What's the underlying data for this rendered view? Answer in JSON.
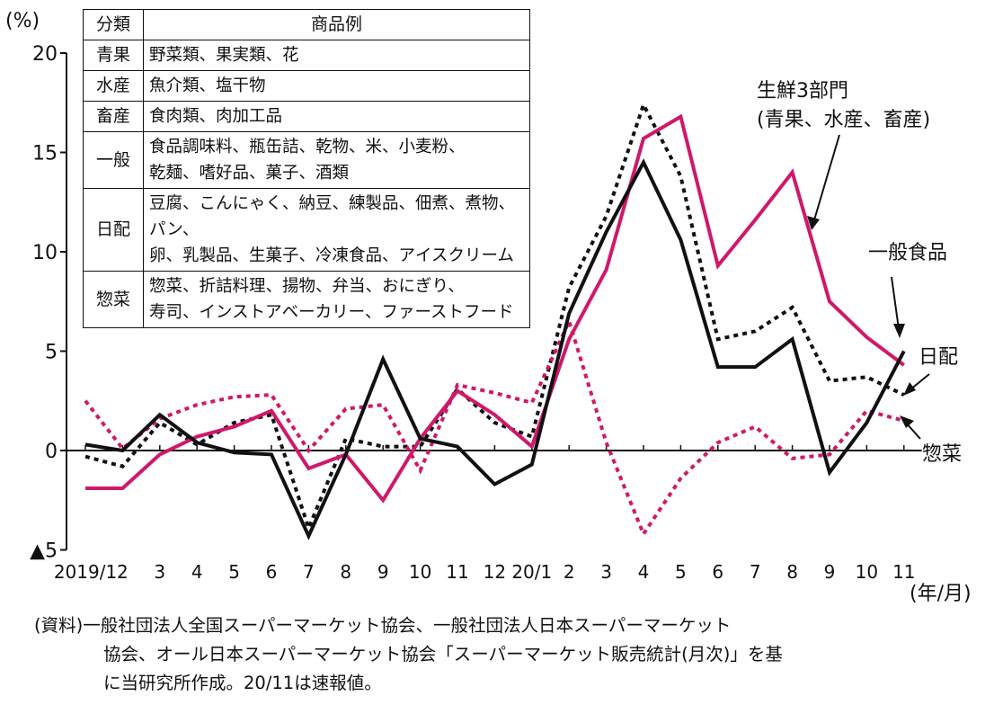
{
  "chart_data": {
    "type": "line",
    "y_unit_label": "(%)",
    "x_unit_label": "(年/月)",
    "ylim": [
      -5,
      20
    ],
    "yticks": [
      {
        "value": 20,
        "label": "20"
      },
      {
        "value": 15,
        "label": "15"
      },
      {
        "value": 10,
        "label": "10"
      },
      {
        "value": 5,
        "label": "5"
      },
      {
        "value": 0,
        "label": "0"
      },
      {
        "value": -5,
        "label": "▲5"
      }
    ],
    "categories": [
      "2019/1",
      "2",
      "3",
      "4",
      "5",
      "6",
      "7",
      "8",
      "9",
      "10",
      "11",
      "12",
      "20/1",
      "2",
      "3",
      "4",
      "5",
      "6",
      "7",
      "8",
      "9",
      "10",
      "11"
    ],
    "series": [
      {
        "name": "一般食品",
        "style": "solid",
        "color": "#111111",
        "values": [
          0.3,
          0.0,
          1.8,
          0.4,
          -0.1,
          -0.2,
          -4.3,
          -0.2,
          4.6,
          0.6,
          0.2,
          -1.7,
          -0.7,
          6.9,
          11.0,
          14.5,
          10.6,
          4.2,
          4.2,
          5.6,
          -1.1,
          1.4,
          5.0
        ]
      },
      {
        "name": "生鮮3部門\n(青果、水産、畜産)",
        "style": "solid",
        "color": "#d0186a",
        "values": [
          -1.9,
          -1.9,
          -0.2,
          0.7,
          1.2,
          2.0,
          -0.9,
          -0.2,
          -2.5,
          0.6,
          3.0,
          1.8,
          0.2,
          5.6,
          9.1,
          15.7,
          16.8,
          9.3,
          11.6,
          14.0,
          7.5,
          5.7,
          4.3
        ]
      },
      {
        "name": "日配",
        "style": "dotted",
        "color": "#111111",
        "values": [
          -0.3,
          -0.8,
          1.4,
          0.3,
          1.4,
          1.8,
          -3.9,
          0.6,
          0.2,
          0.2,
          3.1,
          1.4,
          0.7,
          8.2,
          11.8,
          17.4,
          13.8,
          5.6,
          6.0,
          7.2,
          3.5,
          3.7,
          2.8
        ]
      },
      {
        "name": "惣菜",
        "style": "dotted",
        "color": "#d0186a",
        "values": [
          2.5,
          0.1,
          1.6,
          2.3,
          2.7,
          2.8,
          0.0,
          2.1,
          2.3,
          -1.0,
          3.3,
          2.9,
          2.4,
          6.5,
          0.4,
          -4.2,
          -1.4,
          0.4,
          1.2,
          -0.4,
          -0.2,
          2.0,
          1.5
        ]
      }
    ],
    "annotations": {
      "seafood_line1": "生鮮3部門",
      "seafood_line2": "(青果、水産、畜産)",
      "general": "一般食品",
      "daily": "日配",
      "deli": "惣菜"
    },
    "legend_table": {
      "headers": [
        "分類",
        "商品例"
      ],
      "rows": [
        {
          "cat": "青果",
          "ex": [
            "野菜類、果実類、花"
          ]
        },
        {
          "cat": "水産",
          "ex": [
            "魚介類、塩干物"
          ]
        },
        {
          "cat": "畜産",
          "ex": [
            "食肉類、肉加工品"
          ]
        },
        {
          "cat": "一般",
          "ex": [
            "食品調味料、瓶缶詰、乾物、米、小麦粉、",
            "乾麺、嗜好品、菓子、酒類"
          ]
        },
        {
          "cat": "日配",
          "ex": [
            "豆腐、こんにゃく、納豆、練製品、佃煮、煮物、パン、",
            "卵、乳製品、生菓子、冷凍食品、アイスクリーム"
          ]
        },
        {
          "cat": "惣菜",
          "ex": [
            "惣菜、折詰料理、揚物、弁当、おにぎり、",
            "寿司、インストアベーカリー、ファーストフード"
          ]
        }
      ]
    },
    "grid": false
  },
  "source": {
    "line1": "(資料)一般社団法人全国スーパーマーケット協会、一般社団法人日本スーパーマーケット",
    "line2": "協会、オール日本スーパーマーケット協会「スーパーマーケット販売統計(月次)」を基",
    "line3": "に当研究所作成。20/11は速報値。"
  }
}
